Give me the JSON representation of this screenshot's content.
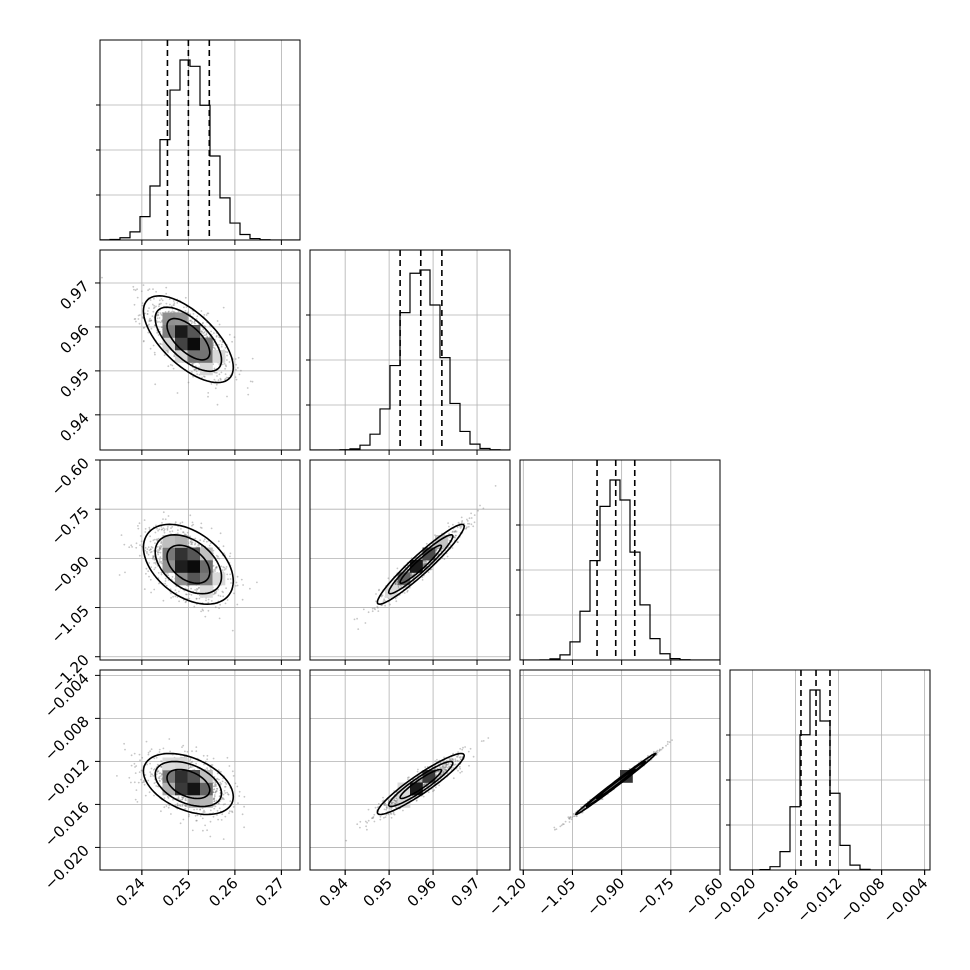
{
  "chart_data": {
    "type": "corner",
    "parameters": [
      {
        "range": [
          0.231,
          0.274
        ],
        "ticks": [
          0.24,
          0.25,
          0.26,
          0.27
        ],
        "tick_labels": [
          "0.24",
          "0.25",
          "0.26",
          "0.27"
        ],
        "mean": 0.25,
        "sd": 0.0046
      },
      {
        "range": [
          0.932,
          0.9775
        ],
        "ticks": [
          0.94,
          0.95,
          0.96,
          0.97
        ],
        "tick_labels": [
          "0.94",
          "0.95",
          "0.96",
          "0.97"
        ],
        "mean": 0.9572,
        "sd": 0.0047
      },
      {
        "range": [
          -1.21,
          -0.6
        ],
        "ticks": [
          -1.2,
          -1.05,
          -0.9,
          -0.75,
          -0.6
        ],
        "tick_labels": [
          "−1.20",
          "−1.05",
          "−0.90",
          "−0.75",
          "−0.60"
        ],
        "mean": -0.918,
        "sd": 0.058
      },
      {
        "range": [
          -0.0221,
          -0.0035
        ],
        "ticks": [
          -0.02,
          -0.016,
          -0.012,
          -0.008,
          -0.004
        ],
        "tick_labels": [
          "−0.020",
          "−0.016",
          "−0.012",
          "−0.008",
          "−0.004"
        ],
        "mean": -0.0141,
        "sd": 0.00135
      }
    ],
    "quantiles": [
      [
        0.2455,
        0.25,
        0.2545
      ],
      [
        0.9525,
        0.9572,
        0.962
      ],
      [
        -0.975,
        -0.918,
        -0.86
      ],
      [
        -0.0155,
        -0.0141,
        -0.0128
      ]
    ],
    "correlations": [
      [
        0,
        1,
        -0.65
      ],
      [
        0,
        2,
        -0.42
      ],
      [
        0,
        3,
        -0.42
      ],
      [
        1,
        2,
        0.95
      ],
      [
        1,
        3,
        0.93
      ],
      [
        2,
        3,
        0.995
      ]
    ],
    "grid": true
  }
}
